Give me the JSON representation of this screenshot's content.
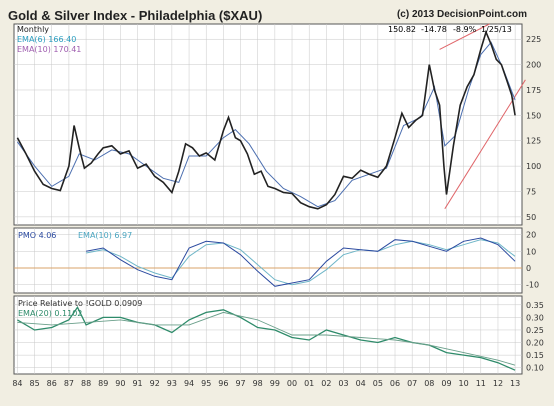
{
  "title": "Gold & Silver Index - Philadelphia ($XAU)",
  "copyright": "(c) 2013 DecisionPoint.com",
  "header_stats": {
    "close": "150.82",
    "change": "-14.78",
    "pct": "-8.9%",
    "date": "1/25/13"
  },
  "colors": {
    "price": "#222222",
    "ema": "#4c6fb0",
    "trend": "#e0666a",
    "pmo": "#2b4aa0",
    "pmo_signal": "#6fb6c8",
    "relative": "#2e8b6a",
    "zero_line": "#d9a36a",
    "grid": "#c8c8c8",
    "panel_bg": "#ffffff"
  },
  "chart_data": [
    {
      "type": "line",
      "panel": "price",
      "period_label": "Monthly",
      "legend": [
        {
          "label": "EMA(6) 166.40",
          "color": "#2b9ec0"
        },
        {
          "label": "EMA(10) 170.41",
          "color": "#a05fb0"
        }
      ],
      "x_ticks": [
        "84",
        "85",
        "86",
        "87",
        "88",
        "89",
        "90",
        "91",
        "92",
        "93",
        "94",
        "95",
        "96",
        "97",
        "98",
        "99",
        "00",
        "01",
        "02",
        "03",
        "04",
        "05",
        "06",
        "07",
        "08",
        "09",
        "10",
        "11",
        "12",
        "13"
      ],
      "y_ticks": [
        50,
        75,
        100,
        125,
        150,
        175,
        200,
        225
      ],
      "ylim": [
        42,
        240
      ],
      "series": [
        {
          "x": [
            1984.0,
            1984.5,
            1985.0,
            1985.5,
            1986.0,
            1986.5,
            1987.0,
            1987.3,
            1987.6,
            1987.9,
            1988.3,
            1988.7,
            1989.0,
            1989.5,
            1990.0,
            1990.5,
            1991.0,
            1991.5,
            1992.0,
            1992.5,
            1993.0,
            1993.4,
            1993.8,
            1994.2,
            1994.6,
            1995.0,
            1995.5,
            1996.0,
            1996.3,
            1996.7,
            1997.0,
            1997.4,
            1997.8,
            1998.2,
            1998.6,
            1999.0,
            1999.5,
            2000.0,
            2000.5,
            2001.0,
            2001.5,
            2002.0,
            2002.5,
            2003.0,
            2003.5,
            2004.0,
            2004.5,
            2005.0,
            2005.5,
            2006.0,
            2006.4,
            2006.8,
            2007.2,
            2007.6,
            2008.0,
            2008.3,
            2008.6,
            2008.85,
            2009.0,
            2009.4,
            2009.8,
            2010.2,
            2010.6,
            2011.0,
            2011.3,
            2011.6,
            2011.9,
            2012.2,
            2012.5,
            2012.8,
            2013.0
          ],
          "values": [
            128,
            112,
            95,
            82,
            78,
            76,
            100,
            140,
            118,
            98,
            103,
            112,
            118,
            120,
            112,
            115,
            98,
            102,
            90,
            84,
            74,
            95,
            122,
            118,
            110,
            113,
            106,
            135,
            148,
            128,
            125,
            112,
            92,
            95,
            80,
            78,
            74,
            73,
            64,
            60,
            58,
            62,
            72,
            90,
            88,
            96,
            92,
            89,
            100,
            128,
            152,
            138,
            145,
            150,
            200,
            175,
            160,
            100,
            72,
            120,
            160,
            178,
            190,
            215,
            232,
            220,
            205,
            200,
            185,
            170,
            150
          ]
        }
      ],
      "emas": [
        {
          "x": [
            1984.0,
            1985.0,
            1986.0,
            1987.0,
            1987.6,
            1988.5,
            1989.5,
            1990.5,
            1991.5,
            1992.5,
            1993.4,
            1994.0,
            1995.0,
            1996.0,
            1996.7,
            1997.5,
            1998.5,
            1999.5,
            2000.5,
            2001.5,
            2002.5,
            2003.5,
            2004.5,
            2005.5,
            2006.5,
            2007.5,
            2008.3,
            2008.9,
            2009.5,
            2010.3,
            2011.0,
            2011.6,
            2012.3,
            2013.0
          ],
          "values": [
            124,
            100,
            80,
            90,
            112,
            106,
            116,
            112,
            100,
            88,
            84,
            110,
            110,
            128,
            136,
            122,
            95,
            78,
            70,
            60,
            66,
            86,
            92,
            98,
            140,
            148,
            178,
            120,
            130,
            176,
            210,
            222,
            196,
            165
          ]
        }
      ],
      "trendlines": [
        {
          "x": [
            2008.6,
            2011.5
          ],
          "values": [
            215,
            240
          ]
        },
        {
          "x": [
            2008.9,
            2013.6
          ],
          "values": [
            58,
            185
          ]
        }
      ]
    },
    {
      "type": "line",
      "panel": "pmo",
      "legend": [
        {
          "label": "PMO 4.06",
          "color": "#2b4aa0"
        },
        {
          "label": "EMA(10) 6.97",
          "color": "#4aa5c0"
        }
      ],
      "y_ticks": [
        -10,
        0,
        10,
        20
      ],
      "ylim": [
        -15,
        24
      ],
      "series": [
        {
          "x": [
            1988.0,
            1989.0,
            1990.0,
            1991.0,
            1992.0,
            1993.0,
            1994.0,
            1995.0,
            1996.0,
            1997.0,
            1998.0,
            1999.0,
            2000.0,
            2001.0,
            2002.0,
            2003.0,
            2004.0,
            2005.0,
            2006.0,
            2007.0,
            2008.0,
            2009.0,
            2010.0,
            2011.0,
            2012.0,
            2012.6,
            2013.0
          ],
          "values": [
            10,
            12,
            5,
            -1,
            -5,
            -7,
            12,
            16,
            15,
            8,
            -2,
            -11,
            -9,
            -7,
            4,
            12,
            11,
            10,
            17,
            16,
            13,
            10,
            16,
            18,
            14,
            8,
            4
          ]
        },
        {
          "x": [
            1988.0,
            1989.0,
            1990.0,
            1991.0,
            1992.0,
            1993.0,
            1994.0,
            1995.0,
            1996.0,
            1997.0,
            1998.0,
            1999.0,
            2000.0,
            2001.0,
            2002.0,
            2003.0,
            2004.0,
            2005.0,
            2006.0,
            2007.0,
            2008.0,
            2009.0,
            2010.0,
            2011.0,
            2012.0,
            2012.6,
            2013.0
          ],
          "values": [
            9,
            11,
            7,
            1,
            -3,
            -6,
            7,
            14,
            15,
            11,
            2,
            -7,
            -10,
            -8,
            -1,
            8,
            11,
            10,
            14,
            16,
            14,
            11,
            14,
            17,
            15,
            10,
            7
          ]
        }
      ]
    },
    {
      "type": "line",
      "panel": "relative",
      "legend": [
        {
          "label": "Price Relative to !GOLD 0.0909",
          "color": "#333333"
        },
        {
          "label": "EMA(20) 0.1102",
          "color": "#2e8b6a"
        }
      ],
      "y_ticks": [
        0.1,
        0.15,
        0.2,
        0.25,
        0.3,
        0.35
      ],
      "ylim": [
        0.075,
        0.385
      ],
      "series": [
        {
          "x": [
            1984.0,
            1985.0,
            1986.0,
            1987.0,
            1987.5,
            1988.0,
            1989.0,
            1990.0,
            1991.0,
            1992.0,
            1993.0,
            1994.0,
            1995.0,
            1996.0,
            1997.0,
            1998.0,
            1999.0,
            2000.0,
            2001.0,
            2002.0,
            2003.0,
            2004.0,
            2005.0,
            2006.0,
            2007.0,
            2008.0,
            2009.0,
            2010.0,
            2011.0,
            2012.0,
            2013.0
          ],
          "values": [
            0.29,
            0.25,
            0.26,
            0.29,
            0.34,
            0.27,
            0.3,
            0.3,
            0.28,
            0.27,
            0.24,
            0.29,
            0.32,
            0.33,
            0.3,
            0.26,
            0.25,
            0.22,
            0.21,
            0.25,
            0.23,
            0.21,
            0.2,
            0.22,
            0.2,
            0.19,
            0.16,
            0.15,
            0.14,
            0.12,
            0.09
          ]
        },
        {
          "x": [
            1984.0,
            1986.0,
            1988.0,
            1990.0,
            1992.0,
            1994.0,
            1996.0,
            1998.0,
            2000.0,
            2002.0,
            2004.0,
            2006.0,
            2008.0,
            2010.0,
            2012.0,
            2013.0
          ],
          "values": [
            0.28,
            0.27,
            0.28,
            0.29,
            0.27,
            0.27,
            0.32,
            0.29,
            0.23,
            0.23,
            0.22,
            0.21,
            0.19,
            0.16,
            0.13,
            0.11
          ]
        }
      ]
    }
  ]
}
